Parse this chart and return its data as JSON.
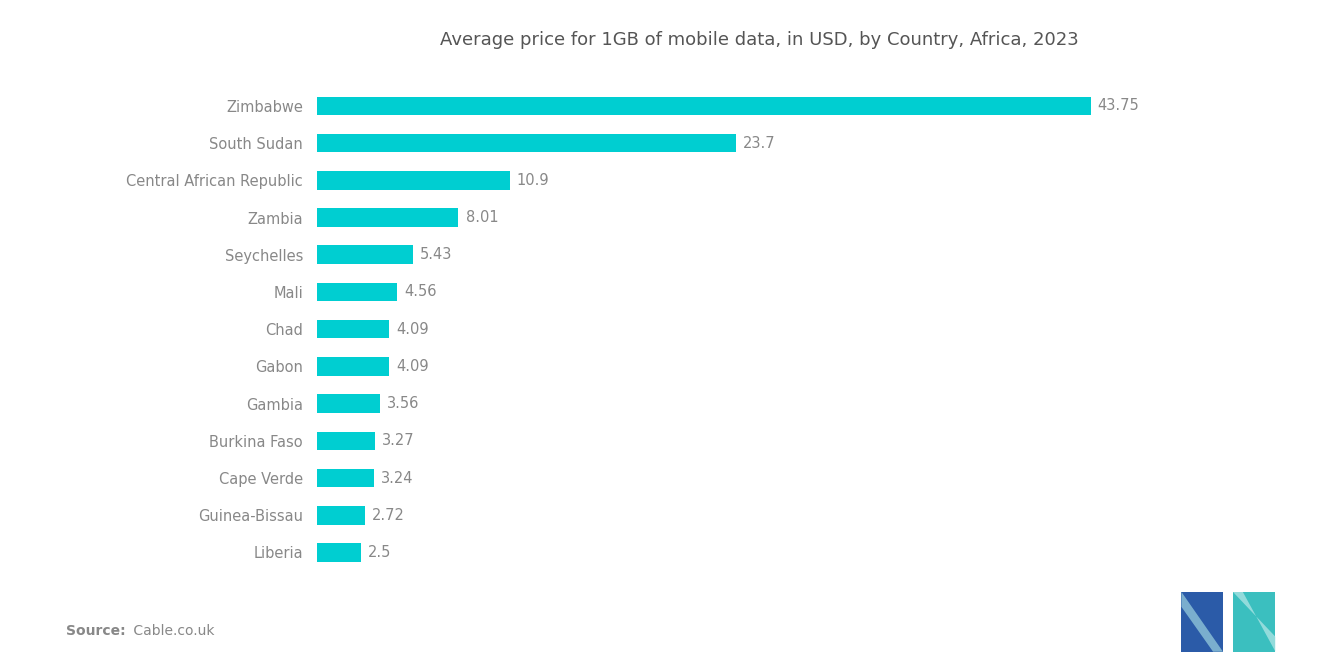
{
  "title": "Average price for 1GB of mobile data, in USD, by Country, Africa, 2023",
  "countries": [
    "Zimbabwe",
    "South Sudan",
    "Central African Republic",
    "Zambia",
    "Seychelles",
    "Mali",
    "Chad",
    "Gabon",
    "Gambia",
    "Burkina Faso",
    "Cape Verde",
    "Guinea-Bissau",
    "Liberia"
  ],
  "values": [
    43.75,
    23.7,
    10.9,
    8.01,
    5.43,
    4.56,
    4.09,
    4.09,
    3.56,
    3.27,
    3.24,
    2.72,
    2.5
  ],
  "bar_color": "#00CED1",
  "label_color": "#888888",
  "title_color": "#555555",
  "background_color": "#ffffff",
  "source_bold": "Source:",
  "source_rest": " Cable.co.uk",
  "xlim": [
    0,
    50
  ],
  "bar_height": 0.5,
  "logo_left_color": "#2255AA",
  "logo_right_color": "#44BBBB"
}
